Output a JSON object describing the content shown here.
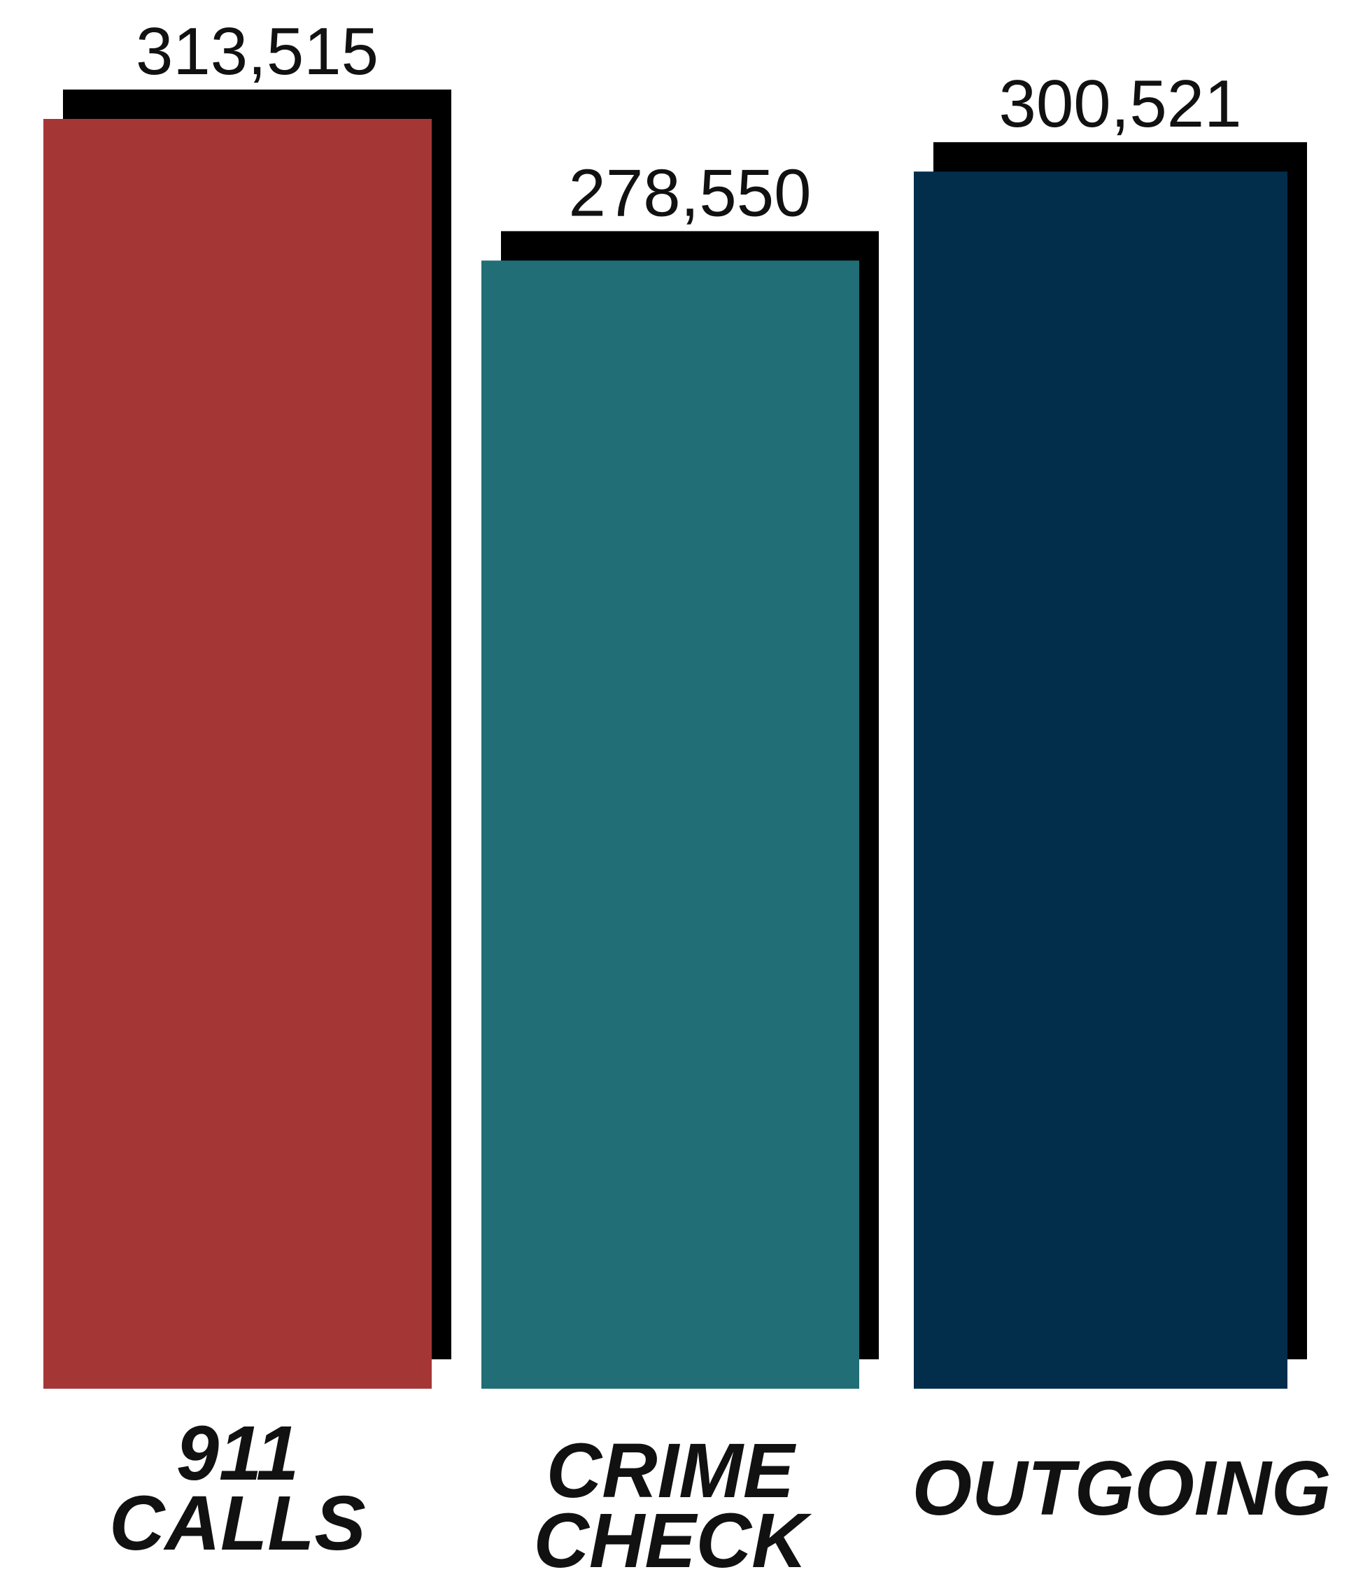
{
  "chart_data": {
    "type": "bar",
    "categories": [
      [
        "911",
        "CALLS"
      ],
      [
        "CRIME",
        "CHECK"
      ],
      [
        "OUTGOING"
      ]
    ],
    "values": [
      313515,
      278550,
      300521
    ],
    "value_labels": [
      "313,515",
      "278,550",
      "300,521"
    ],
    "colors": [
      "#a53636",
      "#216e77",
      "#022d4b"
    ],
    "shadow_color": "#000000",
    "title": "",
    "xlabel": "",
    "ylabel": "",
    "ylim": [
      0,
      313515
    ],
    "grid": false,
    "legend": "none"
  }
}
